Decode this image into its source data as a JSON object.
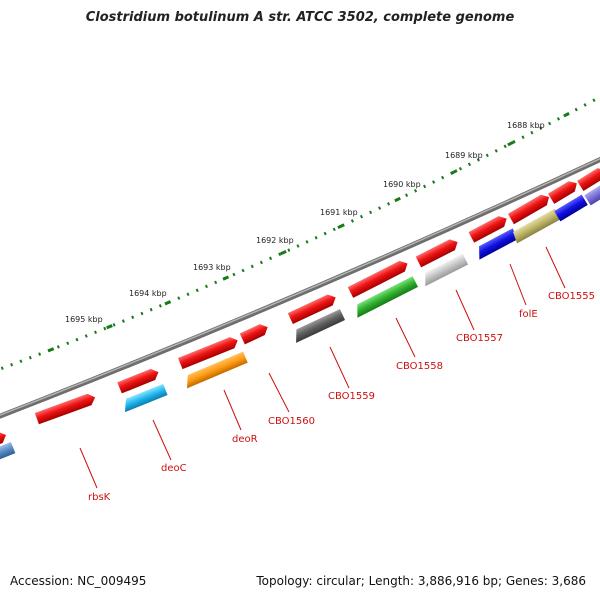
{
  "title": "Clostridium botulinum A str. ATCC 3502, complete genome",
  "accession": "Accession: NC_009495",
  "summary": "Topology: circular; Length: 3,886,916 bp; Genes: 3,686",
  "kbp_labels": [
    "1688 kbp",
    "1689 kbp",
    "1690 kbp",
    "1691 kbp",
    "1692 kbp",
    "1693 kbp",
    "1694 kbp",
    "1695 kbp"
  ],
  "gene_labels": [
    "CBO1555",
    "folE",
    "CBO1557",
    "CBO1558",
    "CBO1559",
    "CBO1560",
    "deoR",
    "deoC",
    "rbsK"
  ],
  "colors": {
    "backbone": "#7a7a7a",
    "ruler": "#1a7a1a",
    "label_line": "#cc1010",
    "forward_gene": "#e21010"
  }
}
